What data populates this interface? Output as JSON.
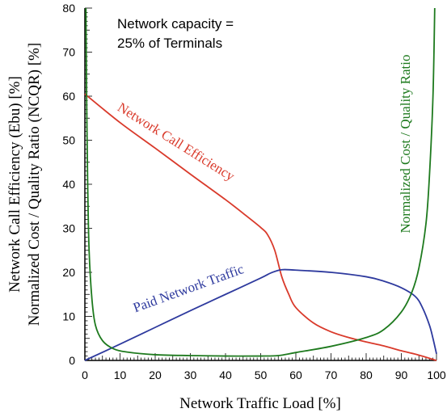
{
  "chart_data": {
    "type": "line",
    "title": "",
    "xlabel": "Network Traffic Load [%]",
    "ylabel_line1": "Network Call Efficiency (Ebu) [%]",
    "ylabel_line2": "Normalized Cost / Quality Ratio (NCQR) [%]",
    "xlim": [
      0,
      100
    ],
    "ylim": [
      0,
      80
    ],
    "x_ticks": [
      0,
      10,
      20,
      30,
      40,
      50,
      60,
      70,
      80,
      90,
      100
    ],
    "y_ticks": [
      0,
      10,
      20,
      30,
      40,
      50,
      60,
      70,
      80
    ],
    "grid": false,
    "annotation": [
      "Network capacity =",
      "25% of Terminals"
    ],
    "series": [
      {
        "name": "Network Call Efficiency",
        "color": "#d93a2b",
        "points": [
          [
            0,
            60.5
          ],
          [
            10,
            54
          ],
          [
            20,
            48.2
          ],
          [
            30,
            42.3
          ],
          [
            40,
            36.5
          ],
          [
            45,
            33.4
          ],
          [
            50,
            30.2
          ],
          [
            52,
            28.5
          ],
          [
            54,
            25
          ],
          [
            56,
            19
          ],
          [
            58,
            15
          ],
          [
            60,
            12
          ],
          [
            65,
            8.5
          ],
          [
            70,
            6.5
          ],
          [
            75,
            5.2
          ],
          [
            80,
            4.2
          ],
          [
            85,
            3.3
          ],
          [
            90,
            2.2
          ],
          [
            95,
            1.2
          ],
          [
            100,
            0
          ]
        ]
      },
      {
        "name": "Paid Network Traffic",
        "color": "#2e3a9e",
        "points": [
          [
            0,
            0
          ],
          [
            10,
            3.7
          ],
          [
            20,
            7.5
          ],
          [
            30,
            11.3
          ],
          [
            40,
            15
          ],
          [
            50,
            18.7
          ],
          [
            53,
            19.9
          ],
          [
            56,
            20.6
          ],
          [
            60,
            20.5
          ],
          [
            70,
            20
          ],
          [
            80,
            19
          ],
          [
            85,
            18
          ],
          [
            90,
            16.5
          ],
          [
            94,
            14.5
          ],
          [
            96,
            12
          ],
          [
            98,
            8
          ],
          [
            99,
            5
          ],
          [
            100,
            1.5
          ]
        ]
      },
      {
        "name": "Normalized Cost / Quality Ratio",
        "color": "#1e7a1e",
        "points": [
          [
            0.3,
            80
          ],
          [
            0.5,
            60
          ],
          [
            0.8,
            40
          ],
          [
            1.2,
            25
          ],
          [
            2,
            14
          ],
          [
            3,
            8
          ],
          [
            5,
            4.5
          ],
          [
            8,
            2.7
          ],
          [
            12,
            1.9
          ],
          [
            20,
            1.3
          ],
          [
            30,
            1.1
          ],
          [
            40,
            1.0
          ],
          [
            50,
            1.0
          ],
          [
            55,
            1.1
          ],
          [
            60,
            1.8
          ],
          [
            70,
            3.2
          ],
          [
            80,
            5.2
          ],
          [
            85,
            7
          ],
          [
            90,
            11
          ],
          [
            93,
            15.5
          ],
          [
            95,
            21
          ],
          [
            97,
            31
          ],
          [
            98,
            42
          ],
          [
            99,
            60
          ],
          [
            99.5,
            80
          ]
        ]
      }
    ]
  }
}
